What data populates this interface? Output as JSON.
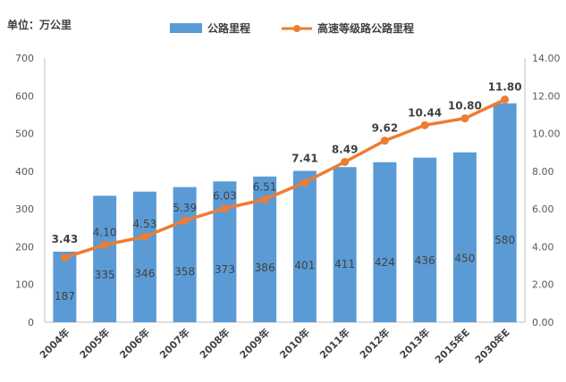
{
  "chart_data": {
    "type": "bar",
    "unit_label": "单位：万公里",
    "categories": [
      "2004年",
      "2005年",
      "2006年",
      "2007年",
      "2008年",
      "2009年",
      "2010年",
      "2011年",
      "2012年",
      "2013年",
      "2015年E",
      "2030年E"
    ],
    "series": [
      {
        "name": "公路里程",
        "type": "bar",
        "axis": "left",
        "color": "#5B9BD5",
        "values": [
          187,
          335,
          346,
          358,
          373,
          386,
          401,
          411,
          424,
          436,
          450,
          580
        ]
      },
      {
        "name": "高速等级路公路里程",
        "type": "line",
        "axis": "right",
        "color": "#ED7D31",
        "values": [
          3.43,
          4.1,
          4.53,
          5.39,
          6.03,
          6.51,
          7.41,
          8.49,
          9.62,
          10.44,
          10.8,
          11.8
        ],
        "labels": [
          "3.43",
          "4.10",
          "4.53",
          "5.39",
          "6.03",
          "6.51",
          "7.41",
          "8.49",
          "9.62",
          "10.44",
          "10.80",
          "11.80"
        ]
      }
    ],
    "y_left": {
      "min": 0,
      "max": 700,
      "step": 100,
      "ticks": [
        "0",
        "100",
        "200",
        "300",
        "400",
        "500",
        "600",
        "700"
      ]
    },
    "y_right": {
      "min": 0,
      "max": 14,
      "step": 2,
      "ticks": [
        "0.00",
        "2.00",
        "4.00",
        "6.00",
        "8.00",
        "10.00",
        "12.00",
        "14.00"
      ]
    },
    "grid": false,
    "legend_position": "top-center"
  }
}
